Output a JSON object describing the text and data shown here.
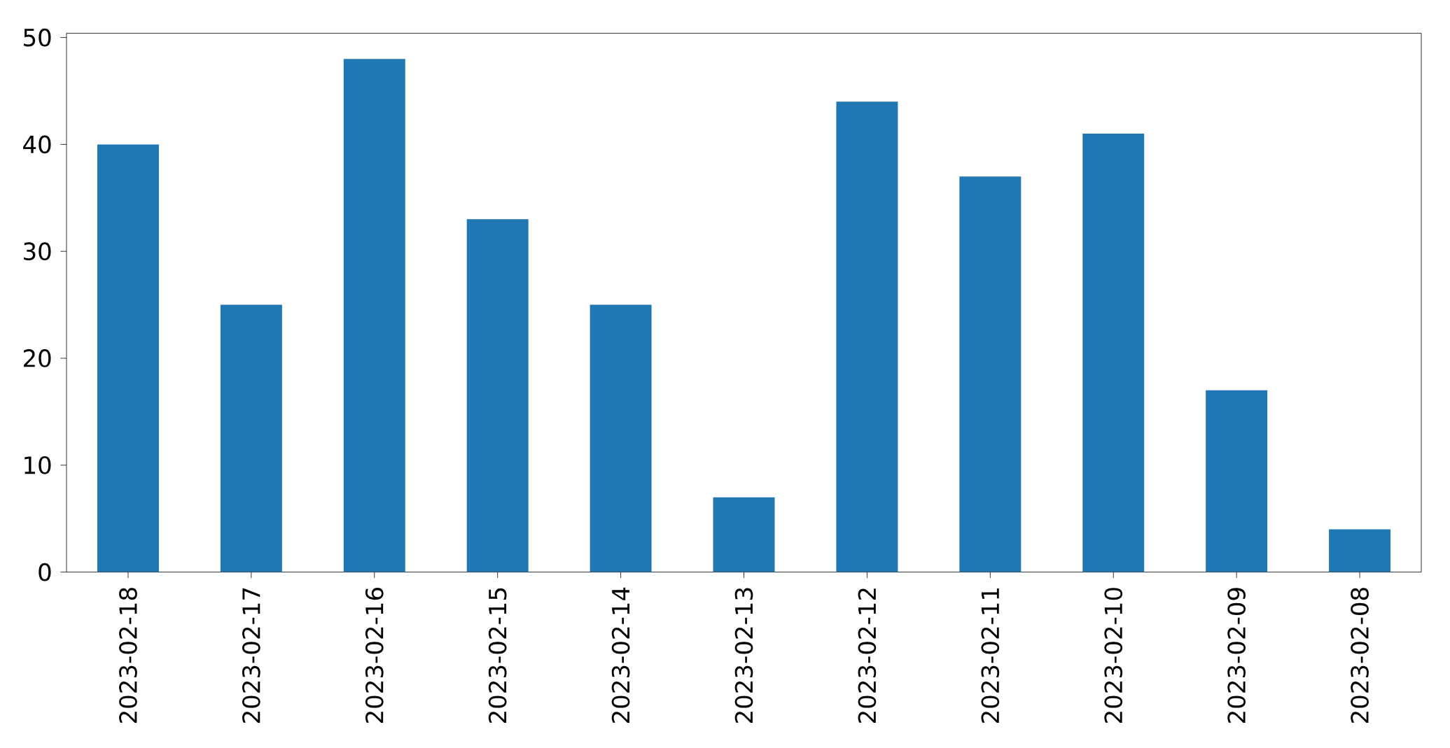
{
  "chart_data": {
    "type": "bar",
    "categories": [
      "2023-02-18",
      "2023-02-17",
      "2023-02-16",
      "2023-02-15",
      "2023-02-14",
      "2023-02-13",
      "2023-02-12",
      "2023-02-11",
      "2023-02-10",
      "2023-02-09",
      "2023-02-08"
    ],
    "values": [
      40,
      25,
      48,
      33,
      25,
      7,
      44,
      37,
      41,
      17,
      4
    ],
    "color": "#1f77b4",
    "ylim": [
      0,
      50.4
    ],
    "yticks": [
      0,
      10,
      20,
      30,
      40,
      50
    ]
  }
}
